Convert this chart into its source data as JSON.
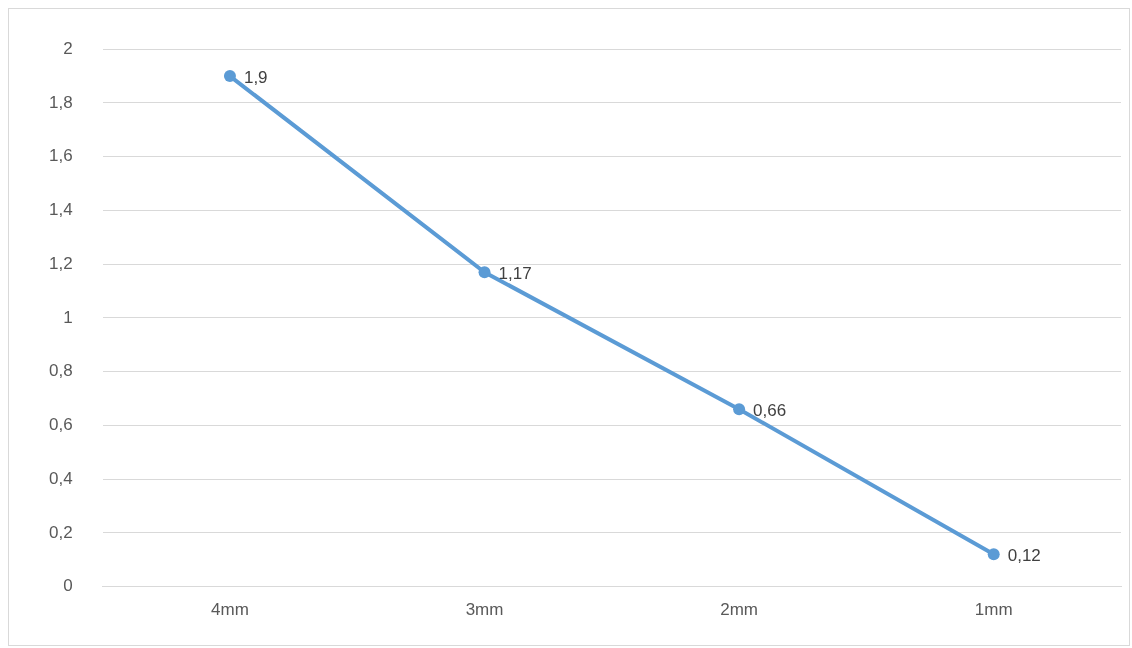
{
  "chart_data": {
    "type": "line",
    "categories": [
      "4mm",
      "3mm",
      "2mm",
      "1mm"
    ],
    "series": [
      {
        "color": "#5b9bd5",
        "values": [
          1.9,
          1.17,
          0.66,
          0.12
        ],
        "value_labels": [
          "1,9",
          "1,17",
          "0,66",
          "0,12"
        ]
      }
    ],
    "ylim": [
      0,
      2
    ],
    "yticks": [
      0,
      {
        "value": 0.2,
        "label": "0,2"
      },
      {
        "value": 0.4,
        "label": "0,4"
      },
      {
        "value": 0.6,
        "label": "0,6"
      },
      {
        "value": 0.8,
        "label": "0,8"
      },
      1,
      {
        "value": 1.2,
        "label": "1,2"
      },
      {
        "value": 1.4,
        "label": "1,4"
      },
      {
        "value": 1.6,
        "label": "1,6"
      },
      {
        "value": 1.8,
        "label": "1,8"
      },
      2
    ],
    "grid": "y",
    "legend": false,
    "marker": "circle",
    "line_style": "solid"
  }
}
